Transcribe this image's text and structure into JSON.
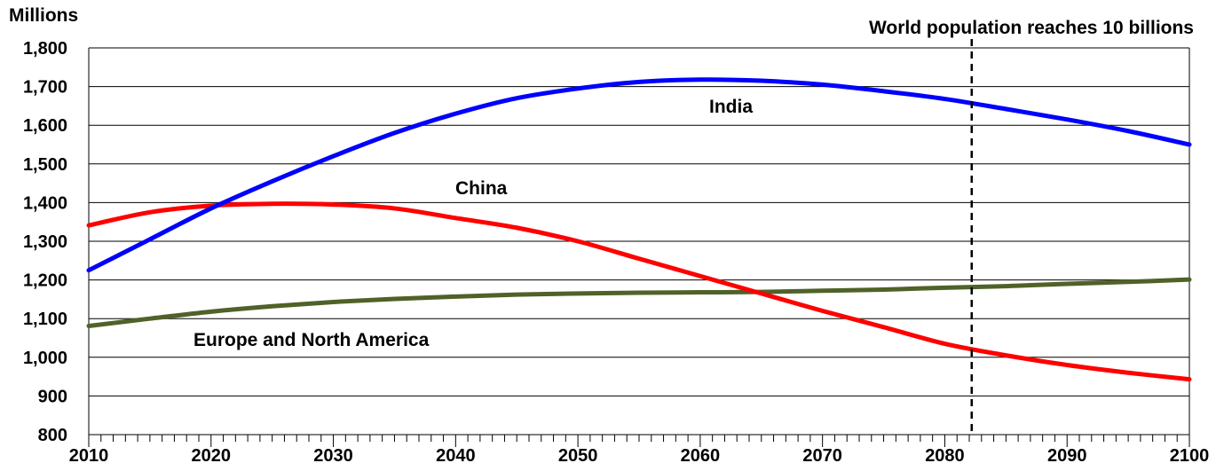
{
  "chart_data": {
    "type": "line",
    "ylabel": "Millions",
    "ylim": [
      800,
      1800
    ],
    "yticks": [
      800,
      900,
      1000,
      1100,
      1200,
      1300,
      1400,
      1500,
      1600,
      1700,
      1800
    ],
    "ytick_labels": [
      "800",
      "900",
      "1,000",
      "1,100",
      "1,200",
      "1,300",
      "1,400",
      "1,500",
      "1,600",
      "1,700",
      "1,800"
    ],
    "xlim": [
      2010,
      2100
    ],
    "xticks": [
      2010,
      2020,
      2030,
      2040,
      2050,
      2060,
      2070,
      2080,
      2090,
      2100
    ],
    "xtick_labels": [
      "2010",
      "2020",
      "2030",
      "2040",
      "2050",
      "2060",
      "2070",
      "2080",
      "2090",
      "2100"
    ],
    "grid": true,
    "series": [
      {
        "name": "India",
        "color": "#0000ff",
        "x": [
          2010,
          2015,
          2020,
          2025,
          2030,
          2035,
          2040,
          2045,
          2050,
          2055,
          2060,
          2065,
          2070,
          2075,
          2080,
          2085,
          2090,
          2095,
          2100
        ],
        "values": [
          1225,
          1305,
          1385,
          1455,
          1520,
          1580,
          1630,
          1670,
          1695,
          1712,
          1718,
          1715,
          1705,
          1688,
          1668,
          1642,
          1615,
          1585,
          1550
        ]
      },
      {
        "name": "China",
        "color": "#ff0000",
        "x": [
          2010,
          2015,
          2020,
          2025,
          2030,
          2035,
          2040,
          2045,
          2050,
          2055,
          2060,
          2065,
          2070,
          2075,
          2080,
          2085,
          2090,
          2095,
          2100
        ],
        "values": [
          1341,
          1375,
          1392,
          1397,
          1395,
          1385,
          1360,
          1335,
          1300,
          1255,
          1210,
          1165,
          1120,
          1078,
          1035,
          1005,
          980,
          960,
          943
        ]
      },
      {
        "name": "Europe and North America",
        "color": "#4f6228",
        "x": [
          2010,
          2015,
          2020,
          2025,
          2030,
          2035,
          2040,
          2045,
          2050,
          2055,
          2060,
          2065,
          2070,
          2075,
          2080,
          2085,
          2090,
          2095,
          2100
        ],
        "values": [
          1081,
          1100,
          1118,
          1132,
          1143,
          1151,
          1157,
          1162,
          1165,
          1167,
          1168,
          1169,
          1172,
          1175,
          1180,
          1184,
          1190,
          1195,
          1201
        ]
      }
    ],
    "annotations": {
      "vline_label": "World population reaches 10 billions",
      "vline_x": 2082.2
    }
  }
}
